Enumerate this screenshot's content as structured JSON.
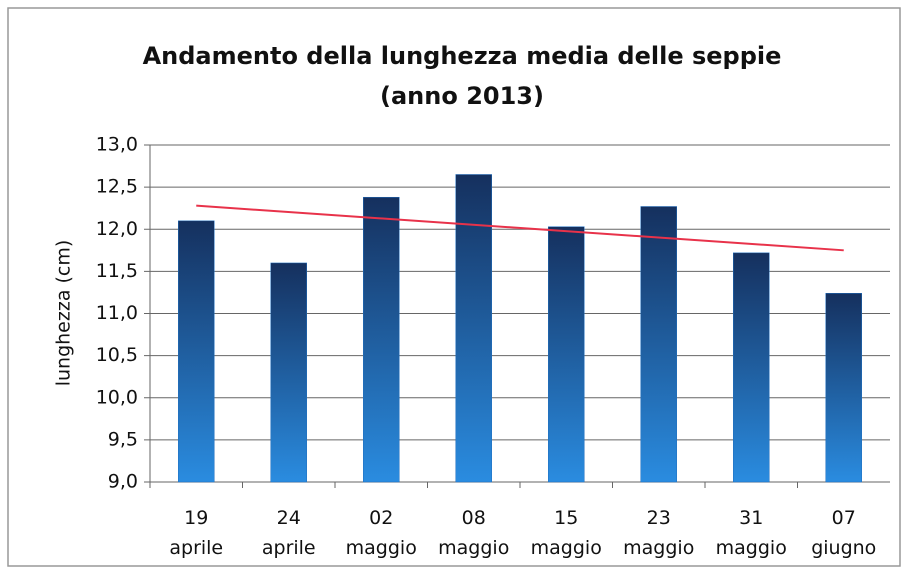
{
  "chart_data": {
    "type": "bar",
    "title": "Andamento della lunghezza media delle seppie",
    "subtitle": "(anno 2013)",
    "y_label": "lunghezza (cm)",
    "categories": [
      "19 aprile",
      "24 aprile",
      "02 maggio",
      "08 maggio",
      "15 maggio",
      "23 maggio",
      "31 maggio",
      "07 giugno"
    ],
    "values": [
      12.1,
      11.6,
      12.38,
      12.65,
      12.03,
      12.27,
      11.72,
      11.24
    ],
    "color": "#1f6fc0",
    "trendline": {
      "color": "#e8324a",
      "start": 12.28,
      "end": 11.75
    },
    "ylim": [
      9,
      13
    ],
    "yticks": [
      {
        "value": 9,
        "label": "9,0"
      },
      {
        "value": 9.5,
        "label": "9,5"
      },
      {
        "value": 10,
        "label": "10,0"
      },
      {
        "value": 10.5,
        "label": "10,5"
      },
      {
        "value": 11,
        "label": "11,0"
      },
      {
        "value": 11.5,
        "label": "11,5"
      },
      {
        "value": 12,
        "label": "12,0"
      },
      {
        "value": 12.5,
        "label": "12,5"
      },
      {
        "value": 13,
        "label": "13,0"
      }
    ],
    "grid": true
  }
}
